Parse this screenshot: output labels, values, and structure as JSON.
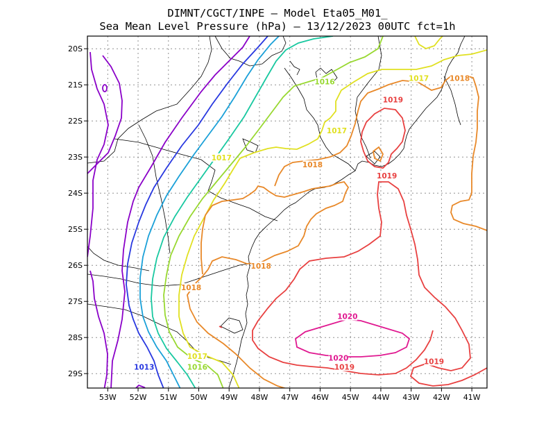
{
  "title": {
    "line1": "DIMNT/CGCT/INPE —  Model Eta05_M01_",
    "line2": "Sea Mean Level Pressure (hPa) — 13/12/2023 00UTC fct=1h"
  },
  "axes": {
    "lat_ticks": [
      "20S",
      "21S",
      "22S",
      "23S",
      "24S",
      "25S",
      "26S",
      "27S",
      "28S",
      "29S"
    ],
    "lon_ticks": [
      "53W",
      "52W",
      "51W",
      "50W",
      "49W",
      "48W",
      "47W",
      "46W",
      "45W",
      "44W",
      "43W",
      "42W",
      "41W"
    ]
  },
  "colors": {
    "c1012": "#8a00c8",
    "c1013": "#2838e0",
    "c1014": "#1aa0d8",
    "c1015": "#18c8a0",
    "c1016": "#98d830",
    "c1017": "#e0e020",
    "c1018": "#e88828",
    "c1019": "#e84040",
    "c1020": "#e01890",
    "grid": "#909090",
    "coast": "#000000"
  },
  "contour_labels": [
    {
      "text": "1013",
      "color": "c1013",
      "lon": -51.8,
      "lat": -28.85
    },
    {
      "text": "1016",
      "color": "c1016",
      "lon": -50.05,
      "lat": -28.85
    },
    {
      "text": "1017",
      "color": "c1017",
      "lon": -50.05,
      "lat": -28.55
    },
    {
      "text": "1017",
      "color": "c1017",
      "lon": -49.25,
      "lat": -23.05
    },
    {
      "text": "1016",
      "color": "c1016",
      "lon": -45.85,
      "lat": -20.95
    },
    {
      "text": "1017",
      "color": "c1017",
      "lon": -45.45,
      "lat": -22.3
    },
    {
      "text": "1017",
      "color": "c1017",
      "lon": -42.75,
      "lat": -20.85
    },
    {
      "text": "1018",
      "color": "c1018",
      "lon": -41.4,
      "lat": -20.85
    },
    {
      "text": "1018",
      "color": "c1018",
      "lon": -46.25,
      "lat": -23.25
    },
    {
      "text": "1018",
      "color": "c1018",
      "lon": -47.95,
      "lat": -26.05
    },
    {
      "text": "1018",
      "color": "c1018",
      "lon": -50.25,
      "lat": -26.65
    },
    {
      "text": "1019",
      "color": "c1019",
      "lon": -43.6,
      "lat": -21.45
    },
    {
      "text": "1019",
      "color": "c1019",
      "lon": -43.8,
      "lat": -23.55
    },
    {
      "text": "1019",
      "color": "c1019",
      "lon": -45.2,
      "lat": -28.85
    },
    {
      "text": "1019",
      "color": "c1019",
      "lon": -42.25,
      "lat": -28.7
    },
    {
      "text": "1020",
      "color": "c1020",
      "lon": -45.1,
      "lat": -27.45
    },
    {
      "text": "1020",
      "color": "c1020",
      "lon": -45.4,
      "lat": -28.6
    }
  ]
}
